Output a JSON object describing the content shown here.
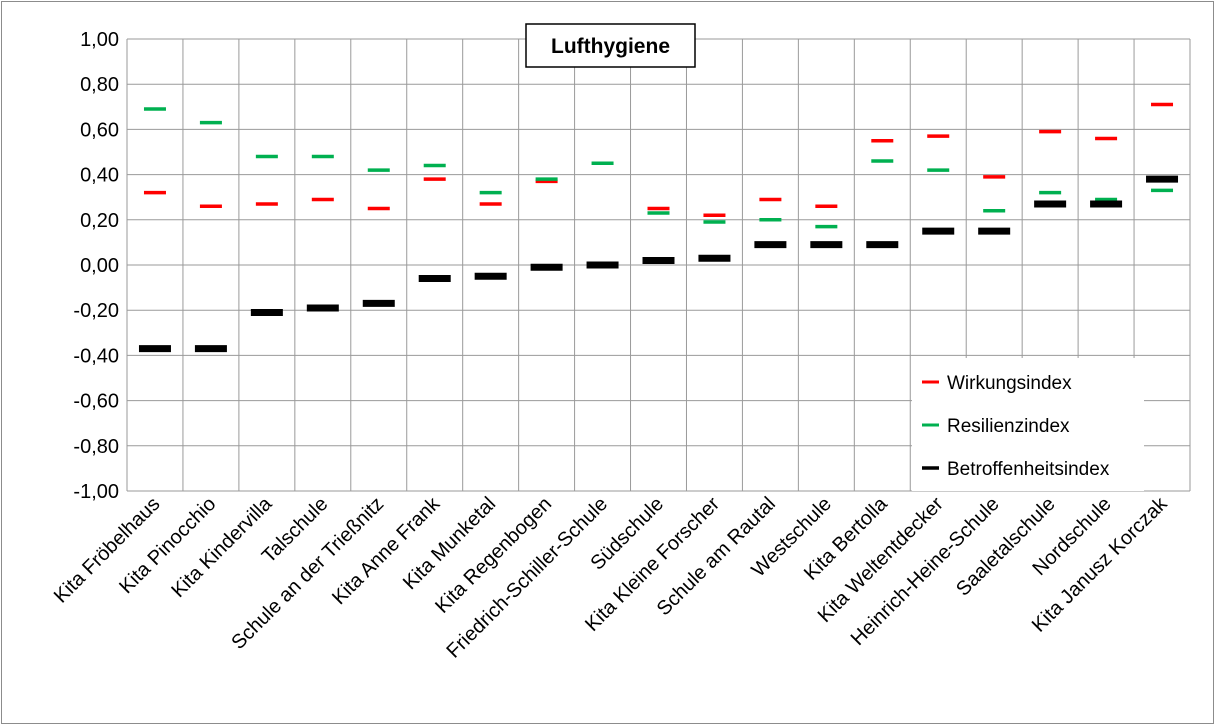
{
  "chart_data": {
    "type": "scatter",
    "title": "Lufthygiene",
    "ylim": [
      -1.0,
      1.0
    ],
    "ytick_step": 0.2,
    "ytick_labels": [
      "1,00",
      "0,80",
      "0,60",
      "0,40",
      "0,20",
      "0,00",
      "-0,20",
      "-0,40",
      "-0,60",
      "-0,80",
      "-1,00"
    ],
    "grid": true,
    "legend_position": "bottom-right",
    "categories": [
      "Kita Fröbelhaus",
      "Kita Pinocchio",
      "Kita Kindervilla",
      "Talschule",
      "Schule an der Trießnitz",
      "Kita Anne Frank",
      "Kita Munketal",
      "Kita Regenbogen",
      "Friedrich-Schiller-Schule",
      "Südschule",
      "Kita Kleine Forscher",
      "Schule am Rautal",
      "Westschule",
      "Kita Bertolla",
      "Kita Weltentdecker",
      "Heinrich-Heine-Schule",
      "Saaletalschule",
      "Nordschule",
      "Kita Janusz Korczak"
    ],
    "series": [
      {
        "name": "Wirkungsindex",
        "color": "#ff0000",
        "values": [
          0.32,
          0.26,
          0.27,
          0.29,
          0.25,
          0.38,
          0.27,
          0.37,
          null,
          0.25,
          0.22,
          0.29,
          0.26,
          0.55,
          0.57,
          0.39,
          0.59,
          0.56,
          0.71
        ]
      },
      {
        "name": "Resilienzindex",
        "color": "#00b050",
        "values": [
          0.69,
          0.63,
          0.48,
          0.48,
          0.42,
          0.44,
          0.32,
          0.38,
          0.45,
          0.23,
          0.19,
          0.2,
          0.17,
          0.46,
          0.42,
          0.24,
          0.32,
          0.29,
          0.33
        ]
      },
      {
        "name": "Betroffenheitsindex",
        "color": "#000000",
        "values": [
          -0.37,
          -0.37,
          -0.21,
          -0.19,
          -0.17,
          -0.06,
          -0.05,
          -0.01,
          0.0,
          0.02,
          0.03,
          0.09,
          0.09,
          0.09,
          0.15,
          0.15,
          0.27,
          0.27,
          0.38
        ]
      }
    ]
  }
}
